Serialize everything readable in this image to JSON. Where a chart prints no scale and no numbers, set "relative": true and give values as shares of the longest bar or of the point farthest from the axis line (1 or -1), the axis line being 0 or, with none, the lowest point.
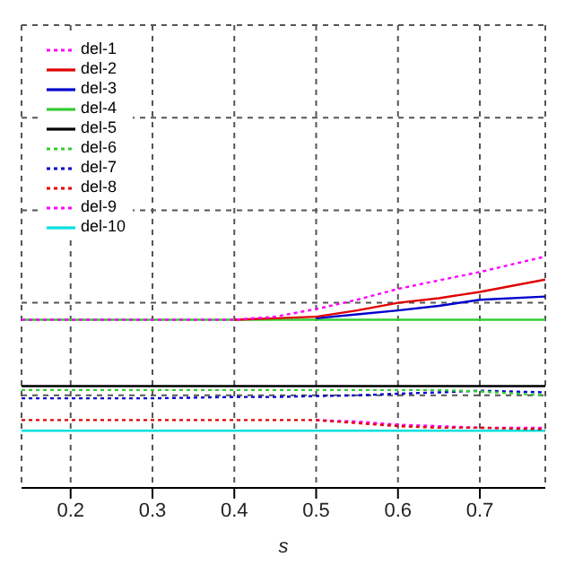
{
  "chart_data": {
    "type": "line",
    "relative": true,
    "xlabel": "s",
    "x": [
      0.14,
      0.2,
      0.3,
      0.4,
      0.45,
      0.5,
      0.55,
      0.6,
      0.65,
      0.7,
      0.78
    ],
    "xlim": [
      0.14,
      0.78
    ],
    "xticks": [
      0.2,
      0.3,
      0.4,
      0.5,
      0.6,
      0.7
    ],
    "grid": true,
    "legend": "top left",
    "marker": "none",
    "series": [
      {
        "name": "del-1",
        "color": "#ff00ff",
        "line_style": "dotted",
        "values": [
          0.727,
          0.727,
          0.727,
          0.727,
          0.74,
          0.773,
          0.813,
          0.86,
          0.897,
          0.933,
          1.0
        ]
      },
      {
        "name": "del-2",
        "color": "#e00000",
        "line_style": "solid",
        "values": [
          null,
          null,
          null,
          0.727,
          0.733,
          0.74,
          0.767,
          0.8,
          0.82,
          0.847,
          0.9
        ]
      },
      {
        "name": "del-3",
        "color": "#0000cc",
        "line_style": "solid",
        "values": [
          null,
          null,
          null,
          null,
          null,
          0.733,
          0.75,
          0.767,
          0.787,
          0.813,
          0.827
        ]
      },
      {
        "name": "del-4",
        "color": "#33cc33",
        "line_style": "solid",
        "values": [
          0.727,
          0.727,
          0.727,
          0.727,
          0.727,
          0.727,
          0.727,
          0.727,
          0.727,
          0.727,
          0.727
        ]
      },
      {
        "name": "del-5",
        "color": "#000000",
        "line_style": "solid",
        "values": [
          0.44,
          0.44,
          0.44,
          0.44,
          0.44,
          0.44,
          0.44,
          0.44,
          0.44,
          0.44,
          0.44
        ]
      },
      {
        "name": "del-6",
        "color": "#33cc33",
        "line_style": "dotted",
        "values": [
          0.423,
          0.423,
          0.423,
          0.423,
          0.423,
          0.423,
          0.423,
          0.423,
          0.423,
          0.417,
          0.4
        ]
      },
      {
        "name": "del-7",
        "color": "#0000cc",
        "line_style": "dotted",
        "values": [
          0.387,
          0.387,
          0.387,
          0.393,
          0.393,
          0.397,
          0.4,
          0.407,
          0.413,
          0.42,
          0.413
        ]
      },
      {
        "name": "del-8",
        "color": "#e00000",
        "line_style": "dotted",
        "values": [
          0.293,
          0.293,
          0.293,
          0.293,
          0.293,
          0.293,
          0.28,
          0.267,
          0.26,
          0.26,
          0.253
        ]
      },
      {
        "name": "del-9",
        "color": "#ff00ff",
        "line_style": "dotted",
        "values": [
          null,
          null,
          null,
          null,
          null,
          0.293,
          0.287,
          0.273,
          0.267,
          0.26,
          0.26
        ]
      },
      {
        "name": "del-10",
        "color": "#00e0e0",
        "line_style": "solid",
        "values": [
          0.247,
          0.247,
          0.247,
          0.247,
          0.247,
          0.247,
          0.247,
          0.247,
          0.247,
          0.247,
          0.247
        ]
      }
    ]
  }
}
